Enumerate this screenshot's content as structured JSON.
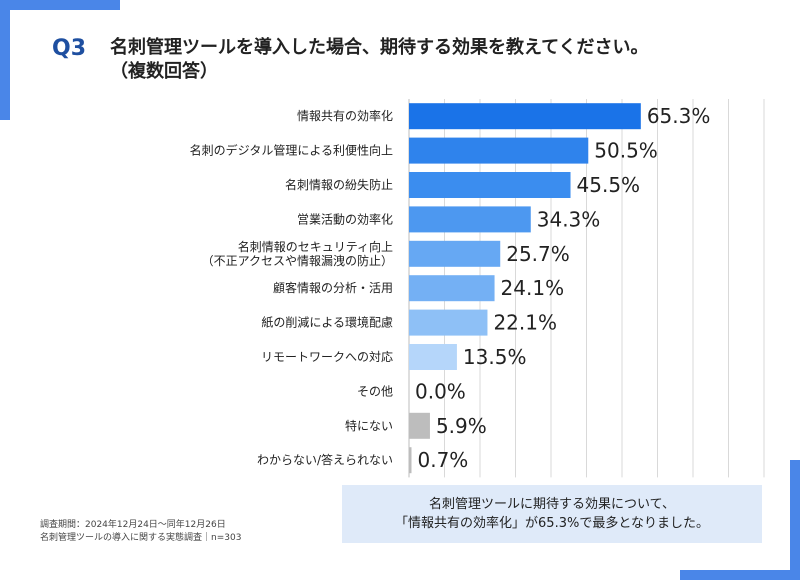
{
  "header": {
    "q_label": "Q3",
    "title_line1": "名刺管理ツールを導入した場合、期待する効果を教えてください。",
    "title_line2": "（複数回答）"
  },
  "footnote": {
    "line1": "調査期間：2024年12月24日～同年12月26日",
    "line2": "名刺管理ツールの導入に関する実態調査｜n=303"
  },
  "summary": {
    "line1": "名刺管理ツールに期待する効果について、",
    "line2": "「情報共有の効率化」が65.3%で最多となりました。"
  },
  "chart_data": {
    "type": "bar",
    "orientation": "horizontal",
    "xlim": [
      0,
      100
    ],
    "categories": [
      [
        "情報共有の効率化"
      ],
      [
        "名刺のデジタル管理による利便性向上"
      ],
      [
        "名刺情報の紛失防止"
      ],
      [
        "営業活動の効率化"
      ],
      [
        "名刺情報のセキュリティ向上",
        "（不正アクセスや情報漏洩の防止）"
      ],
      [
        "顧客情報の分析・活用"
      ],
      [
        "紙の削減による環境配慮"
      ],
      [
        "リモートワークへの対応"
      ],
      [
        "その他"
      ],
      [
        "特にない"
      ],
      [
        "わからない/答えられない"
      ]
    ],
    "values": [
      65.3,
      50.5,
      45.5,
      34.3,
      25.7,
      24.1,
      22.1,
      13.5,
      0.0,
      5.9,
      0.7
    ],
    "value_labels": [
      "65.3%",
      "50.5%",
      "45.5%",
      "34.3%",
      "25.7%",
      "24.1%",
      "22.1%",
      "13.5%",
      "0.0%",
      "5.9%",
      "0.7%"
    ],
    "colors": [
      "#1a73e8",
      "#2f83ec",
      "#3b8def",
      "#4d98f0",
      "#66a8f3",
      "#74b0f4",
      "#8ec0f6",
      "#b5d6fa",
      "#b5d6fa",
      "#bdbdbd",
      "#bdbdbd"
    ],
    "grid": true
  }
}
